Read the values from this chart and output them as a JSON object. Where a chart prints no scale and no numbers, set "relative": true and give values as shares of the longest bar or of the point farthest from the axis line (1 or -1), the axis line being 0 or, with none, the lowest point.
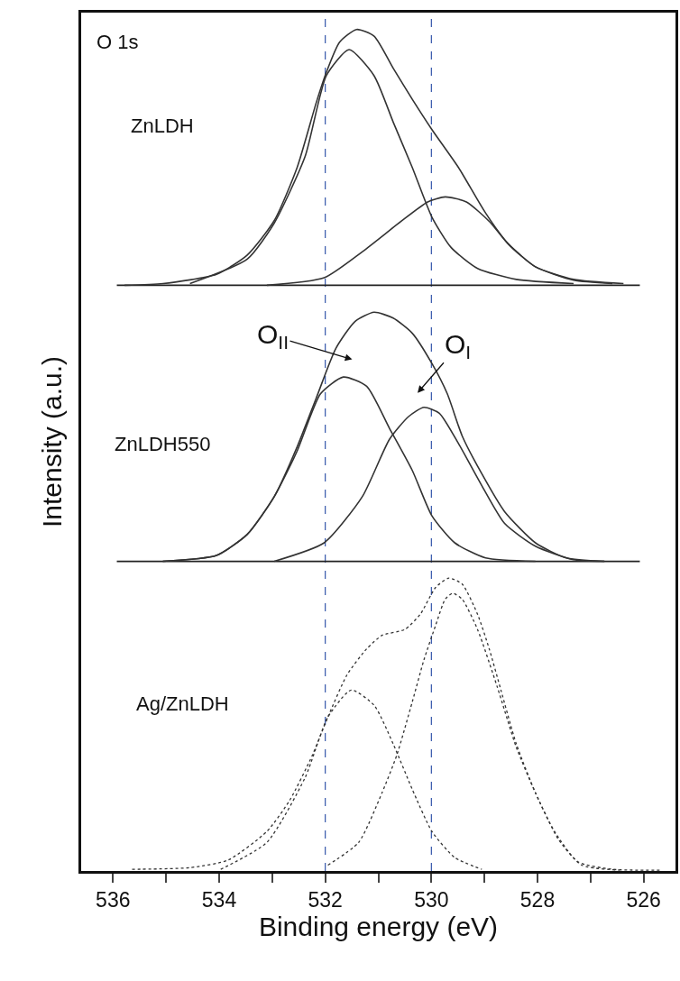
{
  "chart_data": {
    "type": "line",
    "relative": true,
    "xlabel": "Binding energy (eV)",
    "ylabel": "Intensity (a.u.)",
    "xlim": [
      536.6,
      525.4
    ],
    "xticks": [
      536,
      {
        "value": 535,
        "label": null
      },
      534,
      {
        "value": 533,
        "label": null
      },
      532,
      {
        "value": 531,
        "label": null
      },
      530,
      {
        "value": 529,
        "label": null
      },
      528,
      {
        "value": 527,
        "label": null
      },
      526
    ],
    "grid": false,
    "marker": "none",
    "series": [
      {
        "color": "#333333",
        "line_style": "solid",
        "x": [
          535.78,
          535.06,
          534.05,
          533.47,
          532.96,
          532.53,
          532.17,
          531.98,
          531.73,
          531.41,
          531.08,
          530.72,
          530.36,
          529.99,
          529.49,
          528.98,
          528.55,
          528.04,
          527.32,
          526.38
        ],
        "values": [
          0.696,
          0.698,
          0.709,
          0.732,
          0.773,
          0.836,
          0.913,
          0.949,
          0.985,
          1.0,
          0.992,
          0.954,
          0.917,
          0.881,
          0.836,
          0.782,
          0.745,
          0.718,
          0.703,
          0.698
        ]
      },
      {
        "color": "#333333",
        "line_style": "solid",
        "x": [
          534.55,
          533.47,
          532.96,
          532.38,
          531.98,
          531.55,
          531.08,
          530.72,
          530.36,
          529.99,
          529.63,
          529.13,
          528.4,
          527.32
        ],
        "values": [
          0.698,
          0.727,
          0.77,
          0.849,
          0.945,
          0.976,
          0.945,
          0.89,
          0.836,
          0.777,
          0.741,
          0.716,
          0.703,
          0.698
        ]
      },
      {
        "color": "#333333",
        "line_style": "solid",
        "x": [
          533.1,
          532.02,
          531.3,
          530.57,
          530.07,
          529.74,
          529.34,
          528.91,
          528.55,
          528.04,
          527.32,
          526.59
        ],
        "values": [
          0.696,
          0.705,
          0.736,
          0.772,
          0.795,
          0.801,
          0.795,
          0.772,
          0.745,
          0.718,
          0.702,
          0.698
        ]
      },
      {
        "color": "#333333",
        "line_style": "solid",
        "x": [
          535.06,
          534.05,
          533.47,
          532.96,
          532.53,
          532.17,
          531.8,
          531.44,
          531.08,
          530.72,
          530.36,
          529.99,
          529.7,
          529.42,
          529.05,
          528.62,
          528.04,
          527.46,
          526.74
        ],
        "values": [
          0.368,
          0.375,
          0.4,
          0.445,
          0.504,
          0.562,
          0.621,
          0.653,
          0.664,
          0.657,
          0.639,
          0.603,
          0.567,
          0.517,
          0.472,
          0.427,
          0.39,
          0.372,
          0.368
        ]
      },
      {
        "color": "#333333",
        "line_style": "solid",
        "x": [
          535.06,
          534.05,
          533.47,
          532.96,
          532.53,
          532.09,
          531.66,
          531.22,
          530.79,
          530.36,
          529.99,
          529.56,
          528.98,
          528.04
        ],
        "values": [
          0.368,
          0.375,
          0.4,
          0.445,
          0.499,
          0.567,
          0.587,
          0.576,
          0.526,
          0.476,
          0.422,
          0.39,
          0.372,
          0.368
        ]
      },
      {
        "color": "#333333",
        "line_style": "solid",
        "x": [
          532.96,
          532.02,
          531.3,
          530.79,
          530.43,
          530.14,
          529.85,
          529.49,
          529.05,
          528.62,
          528.04,
          527.32,
          526.74
        ],
        "values": [
          0.368,
          0.39,
          0.445,
          0.513,
          0.54,
          0.551,
          0.544,
          0.508,
          0.458,
          0.413,
          0.386,
          0.37,
          0.368
        ]
      },
      {
        "color": "#333333",
        "line_style": "dotted",
        "x": [
          535.64,
          534.55,
          533.83,
          533.1,
          532.67,
          532.24,
          531.95,
          531.59,
          531.22,
          530.93,
          530.5,
          530.21,
          529.92,
          529.67,
          529.42,
          529.13,
          528.91,
          528.69,
          528.4,
          528.04,
          527.68,
          527.24,
          526.59,
          525.65
        ],
        "values": [
          0.002,
          0.004,
          0.013,
          0.047,
          0.084,
          0.138,
          0.183,
          0.233,
          0.264,
          0.28,
          0.287,
          0.305,
          0.337,
          0.348,
          0.341,
          0.305,
          0.264,
          0.215,
          0.151,
          0.093,
          0.047,
          0.011,
          0.002,
          0.001
        ]
      },
      {
        "color": "#333333",
        "line_style": "dotted",
        "x": [
          533.97,
          533.1,
          532.38,
          531.95,
          531.51,
          531.08,
          530.72,
          530.36,
          529.99,
          529.56,
          529.05
        ],
        "values": [
          0.002,
          0.034,
          0.111,
          0.183,
          0.215,
          0.197,
          0.151,
          0.097,
          0.047,
          0.016,
          0.002
        ]
      },
      {
        "color": "#333333",
        "line_style": "dotted",
        "x": [
          531.95,
          531.37,
          530.93,
          530.65,
          530.36,
          530.14,
          529.92,
          529.74,
          529.6,
          529.42,
          529.13,
          528.76,
          528.4,
          528.04,
          527.61,
          527.17,
          526.45
        ],
        "values": [
          0.007,
          0.034,
          0.093,
          0.138,
          0.201,
          0.251,
          0.292,
          0.323,
          0.33,
          0.323,
          0.287,
          0.219,
          0.147,
          0.093,
          0.038,
          0.007,
          0.001
        ]
      }
    ],
    "ref_lines": [
      {
        "axis": "x",
        "value": 532,
        "color": "#3355aa",
        "line_style": "dashed"
      },
      {
        "axis": "x",
        "value": 530,
        "color": "#3355aa",
        "line_style": "dashed"
      },
      {
        "axis": "y",
        "value": 0.696,
        "color": "#222222",
        "line_style": "solid"
      },
      {
        "axis": "y",
        "value": 0.368,
        "color": "#222222",
        "line_style": "solid"
      }
    ],
    "annotations": [
      "O 1s",
      "ZnLDH",
      "ZnLDH550",
      "Ag/ZnLDH",
      "O$_{II}$",
      "O$_{I}$"
    ]
  }
}
